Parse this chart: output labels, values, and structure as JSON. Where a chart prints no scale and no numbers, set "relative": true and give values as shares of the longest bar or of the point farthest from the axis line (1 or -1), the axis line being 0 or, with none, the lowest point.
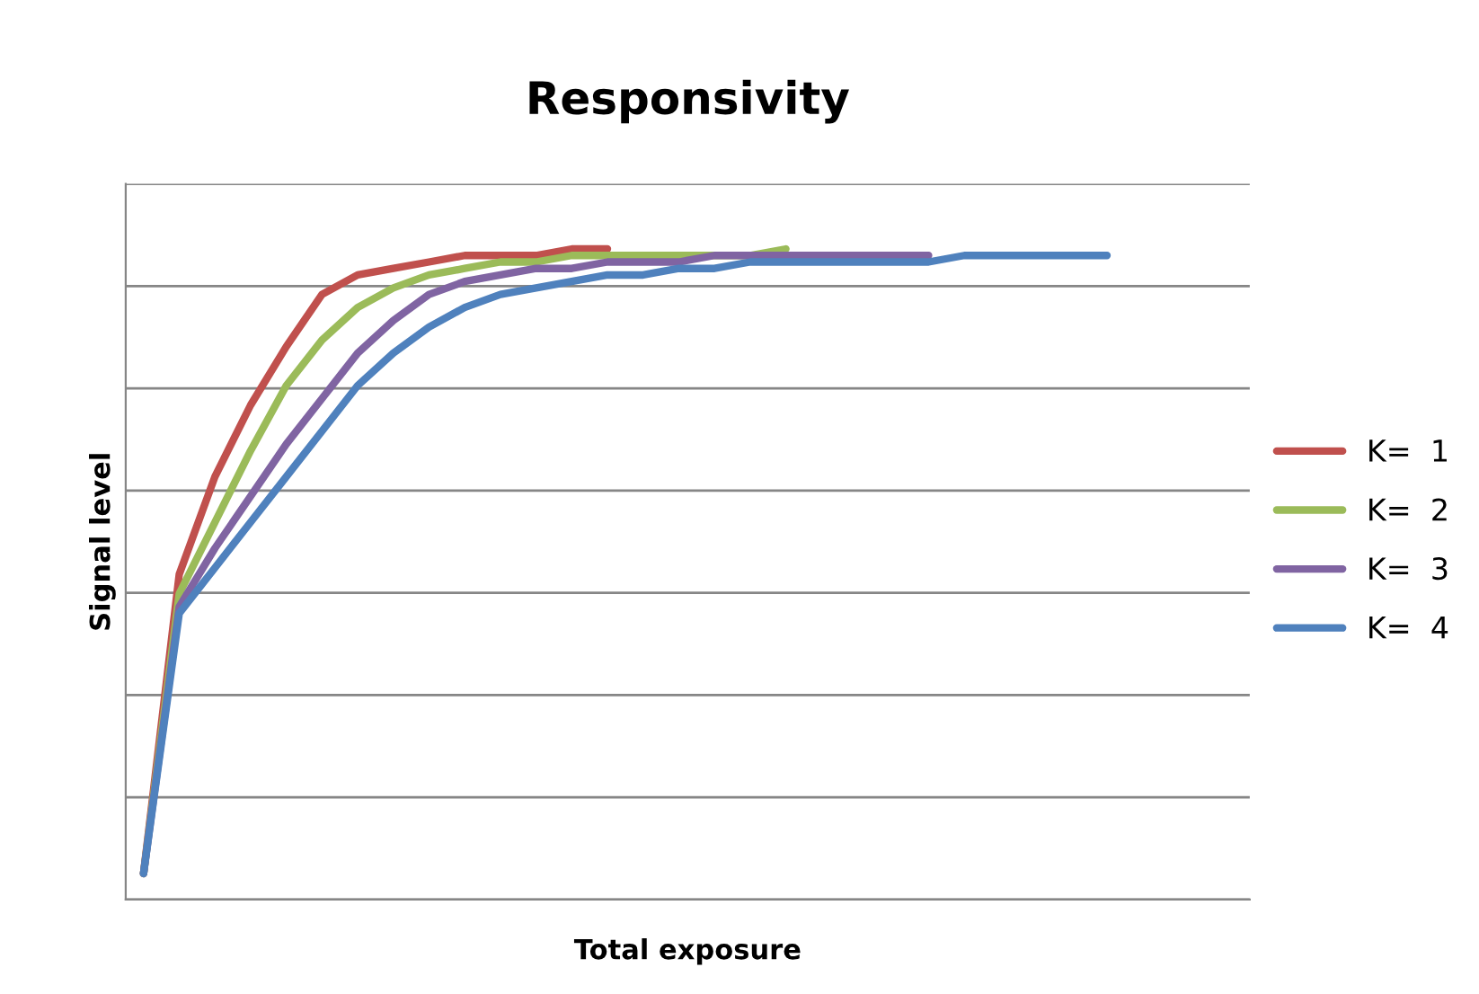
{
  "chart_data": {
    "type": "line",
    "title": "Responsivity",
    "xlabel": "Total exposure",
    "ylabel": "Signal level",
    "relative": true,
    "grid": "y",
    "legend": "right",
    "marker": "none",
    "line_style": "solid",
    "categories": [
      null,
      null,
      null,
      null,
      null,
      null,
      null,
      null,
      null,
      null,
      null,
      null,
      null,
      null,
      null,
      null,
      null,
      null,
      null,
      null,
      null,
      null,
      null,
      null,
      null,
      null,
      null,
      null
    ],
    "series": [
      {
        "name": "K=  1",
        "color": "#c0504d",
        "values": [
          0.04,
          0.5,
          0.65,
          0.76,
          0.85,
          0.93,
          0.96,
          0.97,
          0.98,
          0.99,
          0.99,
          0.99,
          1.0,
          1.0,
          null,
          null,
          null,
          null,
          null,
          null,
          null,
          null,
          null,
          null,
          null,
          null,
          null,
          null
        ]
      },
      {
        "name": "K=  2",
        "color": "#9bbb59",
        "values": [
          0.04,
          0.47,
          0.58,
          0.69,
          0.79,
          0.86,
          0.91,
          0.94,
          0.96,
          0.97,
          0.98,
          0.98,
          0.99,
          0.99,
          0.99,
          0.99,
          0.99,
          0.99,
          1.0,
          null,
          null,
          null,
          null,
          null,
          null,
          null,
          null,
          null
        ]
      },
      {
        "name": "K=  3",
        "color": "#8064a2",
        "values": [
          0.04,
          0.45,
          0.54,
          0.62,
          0.7,
          0.77,
          0.84,
          0.89,
          0.93,
          0.95,
          0.96,
          0.97,
          0.97,
          0.98,
          0.98,
          0.98,
          0.99,
          0.99,
          0.99,
          0.99,
          0.99,
          0.99,
          0.99,
          null,
          null,
          null,
          null,
          null
        ]
      },
      {
        "name": "K=  4",
        "color": "#4f81bd",
        "values": [
          0.04,
          0.44,
          0.51,
          0.58,
          0.65,
          0.72,
          0.79,
          0.84,
          0.88,
          0.91,
          0.93,
          0.94,
          0.95,
          0.96,
          0.96,
          0.97,
          0.97,
          0.98,
          0.98,
          0.98,
          0.98,
          0.98,
          0.98,
          0.99,
          0.99,
          0.99,
          0.99,
          0.99
        ]
      }
    ]
  }
}
